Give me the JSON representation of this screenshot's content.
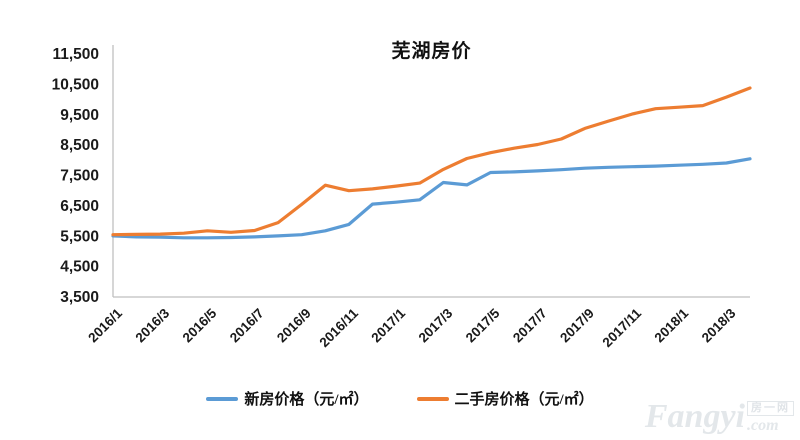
{
  "watermark": {
    "brand": "Fangyi",
    "cjk": "房一网",
    "suffix": ".com"
  },
  "chart_data": {
    "type": "line",
    "title": "芜湖房价",
    "x": [
      "2016/1",
      "2016/2",
      "2016/3",
      "2016/4",
      "2016/5",
      "2016/6",
      "2016/7",
      "2016/8",
      "2016/9",
      "2016/10",
      "2016/11",
      "2016/12",
      "2017/1",
      "2017/2",
      "2017/3",
      "2017/4",
      "2017/5",
      "2017/6",
      "2017/7",
      "2017/8",
      "2017/9",
      "2017/10",
      "2017/11",
      "2017/12",
      "2018/1",
      "2018/2",
      "2018/3",
      "2018/4"
    ],
    "x_tick_labels": [
      "2016/1",
      "2016/3",
      "2016/5",
      "2016/7",
      "2016/9",
      "2016/11",
      "2017/1",
      "2017/3",
      "2017/5",
      "2017/7",
      "2017/9",
      "2017/11",
      "2018/1",
      "2018/3"
    ],
    "series": [
      {
        "name": "新房价格（元/㎡）",
        "color": "#5B9BD5",
        "values": [
          5510,
          5480,
          5470,
          5450,
          5450,
          5460,
          5480,
          5510,
          5550,
          5680,
          5890,
          6560,
          6620,
          6700,
          7270,
          7190,
          7600,
          7620,
          7650,
          7690,
          7740,
          7770,
          7790,
          7810,
          7840,
          7870,
          7910,
          8050
        ]
      },
      {
        "name": "二手房价格（元/㎡）",
        "color": "#ED7D31",
        "values": [
          5550,
          5560,
          5570,
          5600,
          5680,
          5630,
          5690,
          5950,
          6550,
          7180,
          7000,
          7060,
          7150,
          7250,
          7700,
          8060,
          8250,
          8400,
          8520,
          8700,
          9050,
          9290,
          9520,
          9700,
          9750,
          9800,
          10080,
          10380
        ]
      }
    ],
    "xlabel": "",
    "ylabel": "",
    "ylim": [
      3500,
      11500
    ],
    "ytick_step": 1000,
    "ytick_labels": [
      "3,500",
      "4,500",
      "5,500",
      "6,500",
      "7,500",
      "8,500",
      "9,500",
      "10,500",
      "11,500"
    ],
    "grid": false,
    "legend_position": "bottom",
    "axis_color": "#BFBFBF",
    "label_color": "#1a1a1a"
  }
}
